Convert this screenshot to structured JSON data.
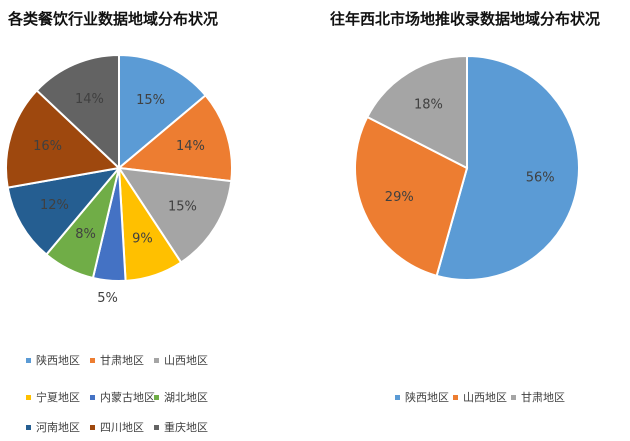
{
  "chart_data": [
    {
      "type": "pie",
      "title": "各类餐饮行业数据地域分布状况",
      "legend_position": "bottom",
      "categories": [
        "陕西地区",
        "甘肃地区",
        "山西地区",
        "宁夏地区",
        "内蒙古地区",
        "湖北地区",
        "河南地区",
        "四川地区",
        "重庆地区"
      ],
      "values": [
        15,
        14,
        15,
        9,
        5,
        8,
        12,
        16,
        14
      ],
      "labels": [
        "15%",
        "14%",
        "15%",
        "9%",
        "5%",
        "8%",
        "12%",
        "16%",
        "14%"
      ],
      "colors": [
        "#5b9bd5",
        "#ed7d31",
        "#a5a5a5",
        "#ffc000",
        "#4472c4",
        "#70ad47",
        "#255e91",
        "#9e480e",
        "#636363"
      ]
    },
    {
      "type": "pie",
      "title": "往年西北市场地推收录数据地域分布状况",
      "legend_position": "bottom",
      "categories": [
        "陕西地区",
        "山西地区",
        "甘肃地区"
      ],
      "values": [
        56,
        29,
        18
      ],
      "labels": [
        "56%",
        "29%",
        "18%"
      ],
      "colors": [
        "#5b9bd5",
        "#ed7d31",
        "#a5a5a5"
      ]
    }
  ]
}
